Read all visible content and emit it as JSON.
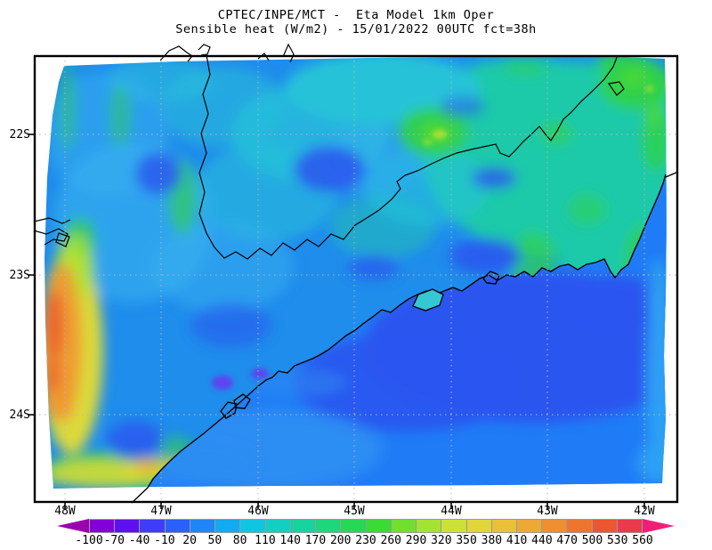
{
  "header": {
    "title_line1": "CPTEC/INPE/MCT -  Eta Model 1km Oper",
    "title_line2": "Sensible heat (W/m2) - 15/01/2022 00UTC fct=38h"
  },
  "map": {
    "lat_labels": [
      "22S",
      "23S",
      "24S"
    ],
    "lon_labels": [
      "48W",
      "47W",
      "46W",
      "45W",
      "44W",
      "43W",
      "42W"
    ],
    "frame_color": "#000000",
    "grid_color": "#b9b9b9",
    "coastline_color": "#000000",
    "border_line_color": "#000000",
    "background": "#ffffff",
    "field_colors": {
      "land_base": "#1f8dec",
      "land_light": "#38b2ef",
      "land_cyan": "#27c3d8",
      "land_teal": "#1fc9a9",
      "green": "#2fd14c",
      "green_bright": "#52da2e",
      "yellow_green": "#a8e233",
      "yellow": "#dcd93a",
      "orange": "#ef9a33",
      "red_orange": "#ea5c2e",
      "royal_blue": "#2a55ef",
      "ocean_base": "#1f7cf6",
      "ocean_royal": "#2a55ef",
      "ocean_light": "#2da2f3",
      "ocean_pale": "#2e8ff2",
      "purple": "#6a35ee",
      "island_cyan": "#35c8d4"
    }
  },
  "colorbar": {
    "tick_labels": [
      "-100",
      "-70",
      "-40",
      "-10",
      "20",
      "50",
      "80",
      "110",
      "140",
      "170",
      "200",
      "230",
      "260",
      "290",
      "320",
      "350",
      "380",
      "410",
      "440",
      "470",
      "500",
      "530",
      "560"
    ],
    "segment_colors": [
      "#8400d8",
      "#5f10f0",
      "#3f3cfa",
      "#2a60fb",
      "#1e86f6",
      "#12aaf0",
      "#0fc6e2",
      "#12cfc2",
      "#17d3a0",
      "#1ed67c",
      "#27d854",
      "#3cda34",
      "#71df2e",
      "#a4e233",
      "#cbe138",
      "#e0d63a",
      "#e9c138",
      "#eda835",
      "#ee8f31",
      "#ee752d",
      "#ec5630",
      "#ea3a4c"
    ],
    "arrow_left_color": "#9a00b0",
    "arrow_right_color": "#ef1f78",
    "border_color": "#9a9a9a"
  },
  "chart_data": {
    "type": "heatmap",
    "title": "Sensible heat (W/m2) - 15/01/2022 00UTC fct=38h",
    "model": "CPTEC/INPE/MCT Eta Model 1km Oper",
    "units": "W/m2",
    "x_ticks": [
      "48W",
      "47W",
      "46W",
      "45W",
      "44W",
      "43W",
      "42W"
    ],
    "y_ticks": [
      "22S",
      "23S",
      "24S"
    ],
    "scale_boundaries": [
      -100,
      -70,
      -40,
      -10,
      20,
      50,
      80,
      110,
      140,
      170,
      200,
      230,
      260,
      290,
      320,
      350,
      380,
      410,
      440,
      470,
      500,
      530,
      560
    ],
    "approx_region_values": {
      "ocean_southeast": "-10 to 50",
      "land_northwest": "50 to 110",
      "land_east_teal_green": "110 to 230",
      "green_hotspot_44.3W_22S": "200 to 320",
      "west_edge_band_48W": "320 to 530",
      "south_coast_green_band": "200 to 380"
    }
  }
}
